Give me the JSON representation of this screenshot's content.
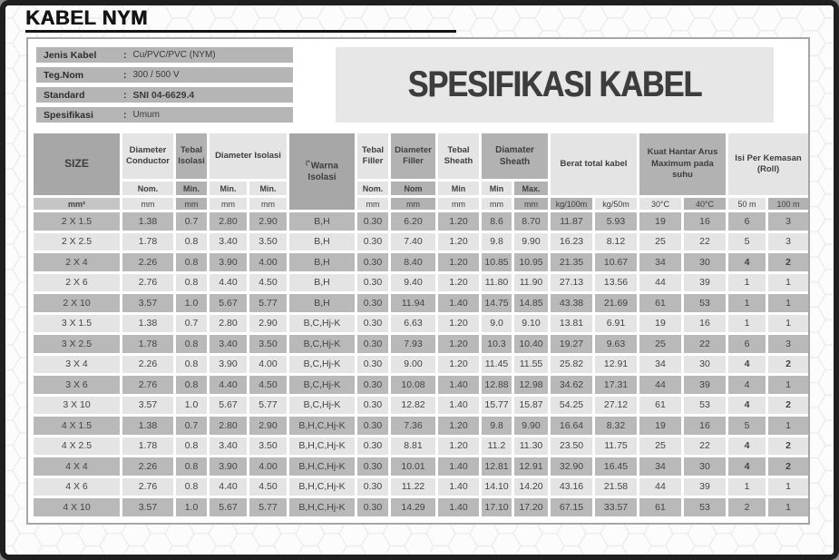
{
  "page": {
    "title": "KABEL NYM",
    "heading": "SPESIFIKASI KABEL",
    "colors": {
      "border": "#1f1f1f",
      "bar_gray": "#b5b5b5",
      "cell_dark": "#b9b9b9",
      "cell_light": "#e4e4e4",
      "header_dark": "#a7a7a7",
      "title_box": "#e7e7e7"
    },
    "info": [
      {
        "label": "Jenis Kabel",
        "colon": ":",
        "value": "Cu/PVC/PVC (NYM)"
      },
      {
        "label": "Teg.Nom",
        "colon": ":",
        "value": "300 / 500 V"
      },
      {
        "label": "Standard",
        "colon": ":",
        "value": "SNI 04-6629.4"
      },
      {
        "label": "Spesifikasi",
        "colon": ":",
        "value": "Umum"
      }
    ]
  },
  "table": {
    "size_label": "SIZE",
    "groups": {
      "diameter_conductor": "Diameter Conductor",
      "tebal_isolasi": "Tebal Isolasi",
      "diameter_isolasi": "Diameter Isolasi",
      "warna_sup": "(*",
      "warna_isolasi": "Warna Isolasi",
      "tebal_filler": "Tebal Filler",
      "diameter_filler": "Diameter Filler",
      "tebal_sheath": "Tebal Sheath",
      "diamater_sheath": "Diamater Sheath",
      "berat_total": "Berat total kabel",
      "kuat_hantar": "Kuat Hantar Arus Maximum pada suhu",
      "isi_per_kemasan": "Isi Per Kemasan (Roll)"
    },
    "subs": {
      "nom_dot": "Nom.",
      "min_dot": "Min.",
      "nom": "Nom",
      "min": "Min",
      "max_dot": "Max."
    },
    "units": {
      "mm2": "mm²",
      "mm": "mm",
      "kg100": "kg/100m",
      "kg50": "kg/50m",
      "c30": "30°C",
      "c40": "40°C",
      "m50": "50 m",
      "m100": "100 m"
    },
    "bold_roll_rows": [
      2,
      7,
      9,
      11,
      12
    ],
    "rows": [
      [
        "2 X 1.5",
        "1.38",
        "0.7",
        "2.80",
        "2.90",
        "B,H",
        "0.30",
        "6.20",
        "1.20",
        "8.6",
        "8.70",
        "11.87",
        "5.93",
        "19",
        "16",
        "6",
        "3"
      ],
      [
        "2 X 2.5",
        "1.78",
        "0.8",
        "3.40",
        "3.50",
        "B,H",
        "0.30",
        "7.40",
        "1.20",
        "9.8",
        "9.90",
        "16.23",
        "8.12",
        "25",
        "22",
        "5",
        "3"
      ],
      [
        "2 X 4",
        "2.26",
        "0.8",
        "3.90",
        "4.00",
        "B,H",
        "0.30",
        "8.40",
        "1.20",
        "10.85",
        "10.95",
        "21.35",
        "10.67",
        "34",
        "30",
        "4",
        "2"
      ],
      [
        "2 X 6",
        "2.76",
        "0.8",
        "4.40",
        "4.50",
        "B,H",
        "0.30",
        "9.40",
        "1.20",
        "11.80",
        "11.90",
        "27.13",
        "13.56",
        "44",
        "39",
        "1",
        "1"
      ],
      [
        "2 X 10",
        "3.57",
        "1.0",
        "5.67",
        "5.77",
        "B,H",
        "0.30",
        "11.94",
        "1.40",
        "14.75",
        "14.85",
        "43.38",
        "21.69",
        "61",
        "53",
        "1",
        "1"
      ],
      [
        "3 X 1.5",
        "1.38",
        "0.7",
        "2.80",
        "2.90",
        "B,C,Hj-K",
        "0.30",
        "6.63",
        "1.20",
        "9.0",
        "9.10",
        "13.81",
        "6.91",
        "19",
        "16",
        "1",
        "1"
      ],
      [
        "3 X 2.5",
        "1.78",
        "0.8",
        "3.40",
        "3.50",
        "B,C,Hj-K",
        "0.30",
        "7.93",
        "1.20",
        "10.3",
        "10.40",
        "19.27",
        "9.63",
        "25",
        "22",
        "6",
        "3"
      ],
      [
        "3 X 4",
        "2.26",
        "0.8",
        "3.90",
        "4.00",
        "B,C,Hj-K",
        "0.30",
        "9.00",
        "1.20",
        "11.45",
        "11.55",
        "25.82",
        "12.91",
        "34",
        "30",
        "4",
        "2"
      ],
      [
        "3 X 6",
        "2.76",
        "0.8",
        "4.40",
        "4.50",
        "B,C,Hj-K",
        "0.30",
        "10.08",
        "1.40",
        "12.88",
        "12.98",
        "34.62",
        "17.31",
        "44",
        "39",
        "4",
        "1"
      ],
      [
        "3 X 10",
        "3.57",
        "1.0",
        "5.67",
        "5.77",
        "B,C,Hj-K",
        "0.30",
        "12.82",
        "1.40",
        "15.77",
        "15.87",
        "54.25",
        "27.12",
        "61",
        "53",
        "4",
        "2"
      ],
      [
        "4 X 1.5",
        "1.38",
        "0.7",
        "2.80",
        "2.90",
        "B,H,C,Hj-K",
        "0.30",
        "7.36",
        "1.20",
        "9.8",
        "9.90",
        "16.64",
        "8.32",
        "19",
        "16",
        "5",
        "1"
      ],
      [
        "4 X 2.5",
        "1.78",
        "0.8",
        "3.40",
        "3.50",
        "B,H,C,Hj-K",
        "0.30",
        "8.81",
        "1.20",
        "11.2",
        "11.30",
        "23.50",
        "11.75",
        "25",
        "22",
        "4",
        "2"
      ],
      [
        "4 X 4",
        "2.26",
        "0.8",
        "3.90",
        "4.00",
        "B,H,C,Hj-K",
        "0.30",
        "10.01",
        "1.40",
        "12.81",
        "12.91",
        "32.90",
        "16.45",
        "34",
        "30",
        "4",
        "2"
      ],
      [
        "4 X 6",
        "2.76",
        "0.8",
        "4.40",
        "4.50",
        "B,H,C,Hj-K",
        "0.30",
        "11.22",
        "1.40",
        "14.10",
        "14.20",
        "43.16",
        "21.58",
        "44",
        "39",
        "1",
        "1"
      ],
      [
        "4 X 10",
        "3.57",
        "1.0",
        "5.67",
        "5.77",
        "B,H,C,Hj-K",
        "0.30",
        "14.29",
        "1.40",
        "17.10",
        "17.20",
        "67.15",
        "33.57",
        "61",
        "53",
        "2",
        "1"
      ]
    ]
  }
}
